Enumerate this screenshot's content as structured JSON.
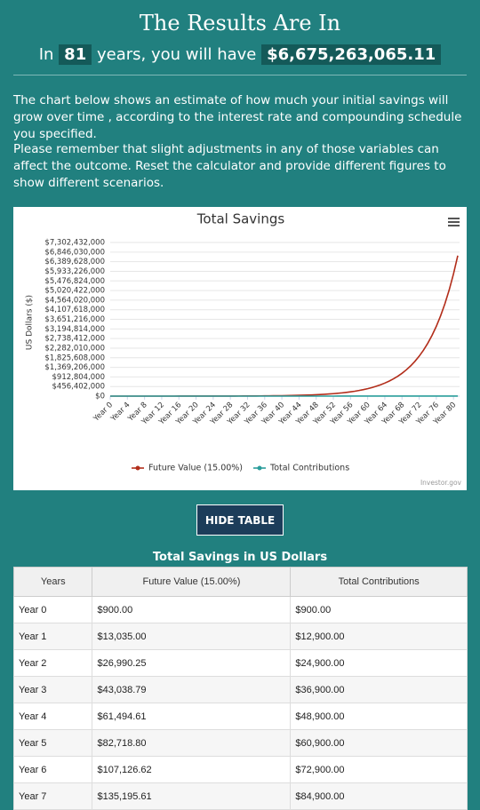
{
  "header": {
    "title": "The Results Are In",
    "prefix": "In",
    "years": "81",
    "middle": "years, you will have",
    "total": "$6,675,263,065.11"
  },
  "paragraphs": [
    "The chart below shows an estimate of how much your initial savings will grow over time , according to the interest rate and compounding schedule you specified.",
    "Please remember that slight adjustments in any of those variables can affect the outcome. Reset the calculator and provide different figures to show different scenarios."
  ],
  "chart_data": {
    "type": "line",
    "title": "Total Savings",
    "y_label": "US Dollars ($)",
    "credit": "Investor.gov",
    "categories": [
      "Year 0",
      null,
      null,
      null,
      "Year 4",
      null,
      null,
      null,
      "Year 8",
      null,
      null,
      null,
      "Year 12",
      null,
      null,
      null,
      "Year 16",
      null,
      null,
      null,
      "Year 20",
      null,
      null,
      null,
      "Year 24",
      null,
      null,
      null,
      "Year 28",
      null,
      null,
      null,
      "Year 32",
      null,
      null,
      null,
      "Year 36",
      null,
      null,
      null,
      "Year 40",
      null,
      null,
      null,
      "Year 44",
      null,
      null,
      null,
      "Year 48",
      null,
      null,
      null,
      "Year 52",
      null,
      null,
      null,
      "Year 56",
      null,
      null,
      null,
      "Year 60",
      null,
      null,
      null,
      "Year 64",
      null,
      null,
      null,
      "Year 68",
      null,
      null,
      null,
      "Year 72",
      null,
      null,
      null,
      "Year 76",
      null,
      null,
      null,
      "Year 80",
      null
    ],
    "series": [
      {
        "name": "Future Value (15.00%)",
        "color": "#b22d1a",
        "values": [
          900,
          13035,
          26990,
          43039,
          61495,
          82719,
          107127,
          135196,
          167475,
          204596,
          247286,
          296378,
          352835,
          417761,
          492425,
          578288,
          677032,
          790586,
          921174,
          1071350,
          1244053,
          1442661,
          1671060,
          1933719,
          2235777,
          2583143,
          2982615,
          3442007,
          3970308,
          4577854,
          5276532,
          6080012,
          7004014,
          8066616,
          9288609,
          10693900,
          12309985,
          14168483,
          16305755,
          18763618,
          21590161,
          24840685,
          28578788,
          32877606,
          37821247,
          43506434,
          50044399,
          57563059,
          66209518,
          76152945,
          87587887,
          100738070,
          115860781,
          133251898,
          153251682,
          176251435,
          202701150,
          233118323,
          268098071,
          308324782,
          354585499,
          407785324,
          468965122,
          539321891,
          620232174,
          713279000,
          820282850,
          943337278,
          1084849869,
          1247589350,
          1434739752,
          1649962715,
          1897469122,
          2182101491,
          2509428714,
          2885855021,
          3318745275,
          3816569066,
          4389066426,
          5047438389,
          5804566148,
          6675263065
        ]
      },
      {
        "name": "Total Contributions",
        "color": "#2a9d9b",
        "values": [
          900,
          12900,
          24900,
          36900,
          48900,
          60900,
          72900,
          84900,
          96900,
          108900,
          120900,
          132900,
          144900,
          156900,
          168900,
          180900,
          192900,
          204900,
          216900,
          228900,
          240900,
          252900,
          264900,
          276900,
          288900,
          300900,
          312900,
          324900,
          336900,
          348900,
          360900,
          372900,
          384900,
          396900,
          408900,
          420900,
          432900,
          444900,
          456900,
          468900,
          480900,
          492900,
          504900,
          516900,
          528900,
          540900,
          552900,
          564900,
          576900,
          588900,
          600900,
          612900,
          624900,
          636900,
          648900,
          660900,
          672900,
          684900,
          696900,
          708900,
          720900,
          732900,
          744900,
          756900,
          768900,
          780900,
          792900,
          804900,
          816900,
          828900,
          840900,
          852900,
          864900,
          876900,
          888900,
          900900,
          912900,
          924900,
          936900,
          948900,
          960900,
          972900
        ]
      }
    ],
    "ylim": [
      0,
      7302432000
    ],
    "yticks": [
      {
        "value": 0,
        "label": "$0"
      },
      {
        "value": 456402000,
        "label": "$456,402,000"
      },
      {
        "value": 912804000,
        "label": "$912,804,000"
      },
      {
        "value": 1369206000,
        "label": "$1,369,206,000"
      },
      {
        "value": 1825608000,
        "label": "$1,825,608,000"
      },
      {
        "value": 2282010000,
        "label": "$2,282,010,000"
      },
      {
        "value": 2738412000,
        "label": "$2,738,412,000"
      },
      {
        "value": 3194814000,
        "label": "$3,194,814,000"
      },
      {
        "value": 3651216000,
        "label": "$3,651,216,000"
      },
      {
        "value": 4107618000,
        "label": "$4,107,618,000"
      },
      {
        "value": 4564020000,
        "label": "$4,564,020,000"
      },
      {
        "value": 5020422000,
        "label": "$5,020,422,000"
      },
      {
        "value": 5476824000,
        "label": "$5,476,824,000"
      },
      {
        "value": 5933226000,
        "label": "$5,933,226,000"
      },
      {
        "value": 6389628000,
        "label": "$6,389,628,000"
      },
      {
        "value": 6846030000,
        "label": "$6,846,030,000"
      },
      {
        "value": 7302432000,
        "label": "$7,302,432,000"
      }
    ],
    "grid": true
  },
  "button": "HIDE TABLE",
  "table": {
    "title": "Total Savings in US Dollars",
    "columns": [
      "Years",
      "Future Value (15.00%)",
      "Total Contributions"
    ],
    "rows": [
      [
        "Year 0",
        "$900.00",
        "$900.00"
      ],
      [
        "Year 1",
        "$13,035.00",
        "$12,900.00"
      ],
      [
        "Year 2",
        "$26,990.25",
        "$24,900.00"
      ],
      [
        "Year 3",
        "$43,038.79",
        "$36,900.00"
      ],
      [
        "Year 4",
        "$61,494.61",
        "$48,900.00"
      ],
      [
        "Year 5",
        "$82,718.80",
        "$60,900.00"
      ],
      [
        "Year 6",
        "$107,126.62",
        "$72,900.00"
      ],
      [
        "Year 7",
        "$135,195.61",
        "$84,900.00"
      ]
    ]
  }
}
